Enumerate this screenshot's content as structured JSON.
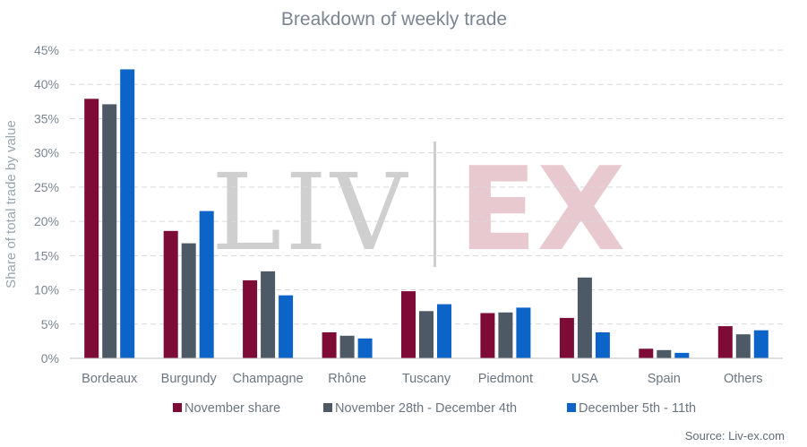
{
  "chart_data": {
    "type": "bar",
    "title": "Breakdown of weekly trade",
    "xlabel": "",
    "ylabel": "Share of total trade by value",
    "ylim": [
      0,
      45
    ],
    "yticks": [
      0,
      5,
      10,
      15,
      20,
      25,
      30,
      35,
      40,
      45
    ],
    "ytick_labels": [
      "0%",
      "5%",
      "10%",
      "15%",
      "20%",
      "25%",
      "30%",
      "35%",
      "40%",
      "45%"
    ],
    "categories": [
      "Bordeaux",
      "Burgundy",
      "Champagne",
      "Rhône",
      "Tuscany",
      "Piedmont",
      "USA",
      "Spain",
      "Others"
    ],
    "series": [
      {
        "name": "November share",
        "color": "#7d0b35",
        "values": [
          37.9,
          18.6,
          11.4,
          3.8,
          9.8,
          6.6,
          5.9,
          1.4,
          4.7
        ]
      },
      {
        "name": "November 28th - December 4th",
        "color": "#4d5a66",
        "values": [
          37.1,
          16.8,
          12.7,
          3.3,
          6.9,
          6.7,
          11.8,
          1.2,
          3.5
        ]
      },
      {
        "name": "December 5th - 11th",
        "color": "#0c64c8",
        "values": [
          42.2,
          21.5,
          9.2,
          2.9,
          7.9,
          7.4,
          3.8,
          0.8,
          4.1
        ]
      }
    ],
    "grid": true,
    "legend_position": "bottom"
  },
  "watermark": {
    "left": "LIV",
    "right": "EX"
  },
  "source": "Source: Liv-ex.com"
}
